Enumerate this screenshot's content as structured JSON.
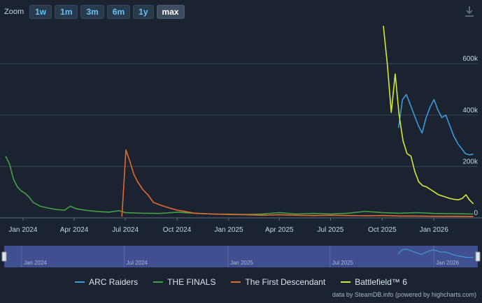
{
  "zoom": {
    "label": "Zoom",
    "buttons": [
      "1w",
      "1m",
      "3m",
      "6m",
      "1y",
      "max"
    ],
    "active": "max"
  },
  "credits": "data by SteamDB.info (powered by highcharts.com)",
  "colors": {
    "background": "#1b2330",
    "grid": "#3a4556",
    "navigator_bg": "#3f4f8f",
    "ARC Raiders": "#3d9ad6",
    "THE FINALS": "#43a047",
    "The First Descendant": "#e06b30",
    "Battlefield™ 6": "#d4e83a"
  },
  "chart_data": {
    "type": "line",
    "title": "",
    "xlabel": "",
    "ylabel": "",
    "x_ticks": [
      "Jan 2024",
      "Apr 2024",
      "Jul 2024",
      "Oct 2024",
      "Jan 2025",
      "Apr 2025",
      "Jul 2025",
      "Oct 2025",
      "Jan 2026"
    ],
    "y_ticks": [
      "0",
      "200k",
      "400k",
      "600k"
    ],
    "ylim": [
      0,
      750000
    ],
    "xlim": [
      "2023-12-01",
      "2026-03-20"
    ],
    "legend_position": "bottom",
    "series": [
      {
        "name": "ARC Raiders",
        "points": [
          [
            "2025-10-30",
            350000
          ],
          [
            "2025-11-06",
            460000
          ],
          [
            "2025-11-13",
            480000
          ],
          [
            "2025-11-20",
            440000
          ],
          [
            "2025-11-27",
            400000
          ],
          [
            "2025-12-04",
            360000
          ],
          [
            "2025-12-11",
            330000
          ],
          [
            "2025-12-18",
            390000
          ],
          [
            "2025-12-25",
            430000
          ],
          [
            "2026-01-01",
            460000
          ],
          [
            "2026-01-08",
            420000
          ],
          [
            "2026-01-15",
            390000
          ],
          [
            "2026-01-22",
            400000
          ],
          [
            "2026-01-29",
            360000
          ],
          [
            "2026-02-05",
            320000
          ],
          [
            "2026-02-12",
            290000
          ],
          [
            "2026-02-19",
            270000
          ],
          [
            "2026-02-26",
            250000
          ],
          [
            "2026-03-05",
            245000
          ],
          [
            "2026-03-12",
            248000
          ]
        ]
      },
      {
        "name": "THE FINALS",
        "points": [
          [
            "2023-12-01",
            240000
          ],
          [
            "2023-12-08",
            210000
          ],
          [
            "2023-12-15",
            150000
          ],
          [
            "2023-12-22",
            120000
          ],
          [
            "2023-12-29",
            105000
          ],
          [
            "2024-01-05",
            95000
          ],
          [
            "2024-01-12",
            80000
          ],
          [
            "2024-01-19",
            60000
          ],
          [
            "2024-02-01",
            45000
          ],
          [
            "2024-02-15",
            38000
          ],
          [
            "2024-03-01",
            32000
          ],
          [
            "2024-03-15",
            30000
          ],
          [
            "2024-03-25",
            45000
          ],
          [
            "2024-04-05",
            35000
          ],
          [
            "2024-04-20",
            30000
          ],
          [
            "2024-05-10",
            25000
          ],
          [
            "2024-06-01",
            22000
          ],
          [
            "2024-06-20",
            28000
          ],
          [
            "2024-07-01",
            20000
          ],
          [
            "2024-08-01",
            18000
          ],
          [
            "2024-09-01",
            17000
          ],
          [
            "2024-10-01",
            22000
          ],
          [
            "2024-11-01",
            18000
          ],
          [
            "2024-12-01",
            15000
          ],
          [
            "2025-01-01",
            14000
          ],
          [
            "2025-02-01",
            13000
          ],
          [
            "2025-03-01",
            15000
          ],
          [
            "2025-04-01",
            20000
          ],
          [
            "2025-05-01",
            15000
          ],
          [
            "2025-06-01",
            17000
          ],
          [
            "2025-07-01",
            15000
          ],
          [
            "2025-08-01",
            18000
          ],
          [
            "2025-09-01",
            25000
          ],
          [
            "2025-10-01",
            20000
          ],
          [
            "2025-11-01",
            18000
          ],
          [
            "2025-12-01",
            20000
          ],
          [
            "2026-01-01",
            17000
          ],
          [
            "2026-02-01",
            16000
          ],
          [
            "2026-03-12",
            15000
          ]
        ]
      },
      {
        "name": "The First Descendant",
        "points": [
          [
            "2024-06-25",
            5000
          ],
          [
            "2024-07-02",
            264000
          ],
          [
            "2024-07-09",
            220000
          ],
          [
            "2024-07-16",
            170000
          ],
          [
            "2024-07-23",
            140000
          ],
          [
            "2024-08-01",
            110000
          ],
          [
            "2024-08-10",
            90000
          ],
          [
            "2024-08-20",
            60000
          ],
          [
            "2024-09-01",
            50000
          ],
          [
            "2024-09-15",
            40000
          ],
          [
            "2024-10-01",
            30000
          ],
          [
            "2024-10-15",
            25000
          ],
          [
            "2024-11-01",
            18000
          ],
          [
            "2024-12-01",
            15000
          ],
          [
            "2025-01-01",
            13000
          ],
          [
            "2025-02-01",
            12000
          ],
          [
            "2025-03-01",
            10000
          ],
          [
            "2025-04-01",
            12000
          ],
          [
            "2025-05-01",
            10000
          ],
          [
            "2025-06-01",
            9000
          ],
          [
            "2025-07-01",
            10000
          ],
          [
            "2025-08-01",
            9000
          ],
          [
            "2025-09-01",
            8000
          ],
          [
            "2025-10-01",
            9000
          ],
          [
            "2025-11-01",
            7000
          ],
          [
            "2025-12-01",
            7000
          ],
          [
            "2026-01-01",
            6000
          ],
          [
            "2026-02-01",
            6000
          ],
          [
            "2026-03-12",
            5000
          ]
        ]
      },
      {
        "name": "Battlefield™ 6",
        "points": [
          [
            "2025-10-03",
            747000
          ],
          [
            "2025-10-10",
            600000
          ],
          [
            "2025-10-17",
            410000
          ],
          [
            "2025-10-24",
            560000
          ],
          [
            "2025-10-31",
            400000
          ],
          [
            "2025-11-07",
            300000
          ],
          [
            "2025-11-14",
            250000
          ],
          [
            "2025-11-21",
            240000
          ],
          [
            "2025-11-28",
            180000
          ],
          [
            "2025-12-05",
            140000
          ],
          [
            "2025-12-12",
            125000
          ],
          [
            "2025-12-19",
            120000
          ],
          [
            "2025-12-26",
            110000
          ],
          [
            "2026-01-02",
            100000
          ],
          [
            "2026-01-09",
            90000
          ],
          [
            "2026-01-16",
            85000
          ],
          [
            "2026-01-23",
            80000
          ],
          [
            "2026-01-30",
            75000
          ],
          [
            "2026-02-06",
            72000
          ],
          [
            "2026-02-13",
            70000
          ],
          [
            "2026-02-20",
            75000
          ],
          [
            "2026-02-27",
            90000
          ],
          [
            "2026-03-05",
            70000
          ],
          [
            "2026-03-12",
            55000
          ]
        ]
      }
    ]
  }
}
